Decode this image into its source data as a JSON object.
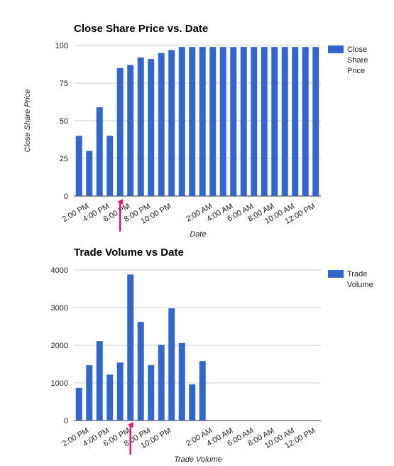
{
  "chart_data": [
    {
      "type": "bar",
      "title": "Close Share Price vs. Date",
      "xlabel": "Date",
      "ylabel": "Close Share Price",
      "ylim": [
        0,
        100
      ],
      "yticks": [
        "0",
        "25",
        "50",
        "75",
        "100"
      ],
      "xtick_labels": [
        "2:00 PM",
        "4:00 PM",
        "6:00 PM",
        "8:00 PM",
        "10:00 PM",
        "2:00 AM",
        "4:00 AM",
        "6:00 AM",
        "8:00 AM",
        "10:00 AM",
        "12:00 PM"
      ],
      "grid": true,
      "legend_position": "right",
      "series": [
        {
          "name": [
            "Close",
            "Share",
            "Price"
          ],
          "color": "#3366cc",
          "values": [
            40,
            30,
            59,
            40,
            85,
            87,
            92,
            91,
            95,
            97,
            99,
            99,
            99,
            99,
            99,
            99,
            99,
            99,
            99,
            99,
            99,
            99,
            99,
            99
          ]
        }
      ],
      "annotation": {
        "type": "arrow",
        "color": "#e3146b",
        "at_bar": 4
      }
    },
    {
      "type": "bar",
      "title": "Trade Volume vs Date",
      "xlabel": "Trade Volume",
      "ylabel": "",
      "ylim": [
        0,
        4000
      ],
      "yticks": [
        "0",
        "1000",
        "2000",
        "3000",
        "4000"
      ],
      "xtick_labels": [
        "2:00 PM",
        "4:00 PM",
        "6:00 PM",
        "8:00 PM",
        "10:00 PM",
        "2:00 AM",
        "4:00 AM",
        "6:00 AM",
        "8:00 AM",
        "10:00 AM",
        "12:00 PM"
      ],
      "grid": true,
      "legend_position": "right",
      "series": [
        {
          "name": [
            "Trade",
            "Volume"
          ],
          "color": "#3366cc",
          "values": [
            870,
            1470,
            2110,
            1220,
            1540,
            3880,
            2620,
            1470,
            2010,
            2980,
            2060,
            960,
            1580,
            0,
            0,
            10,
            0,
            0,
            0,
            0,
            0,
            0,
            0,
            0
          ]
        }
      ],
      "annotation": {
        "type": "arrow",
        "color": "#e3146b",
        "at_bar": 5
      }
    }
  ]
}
